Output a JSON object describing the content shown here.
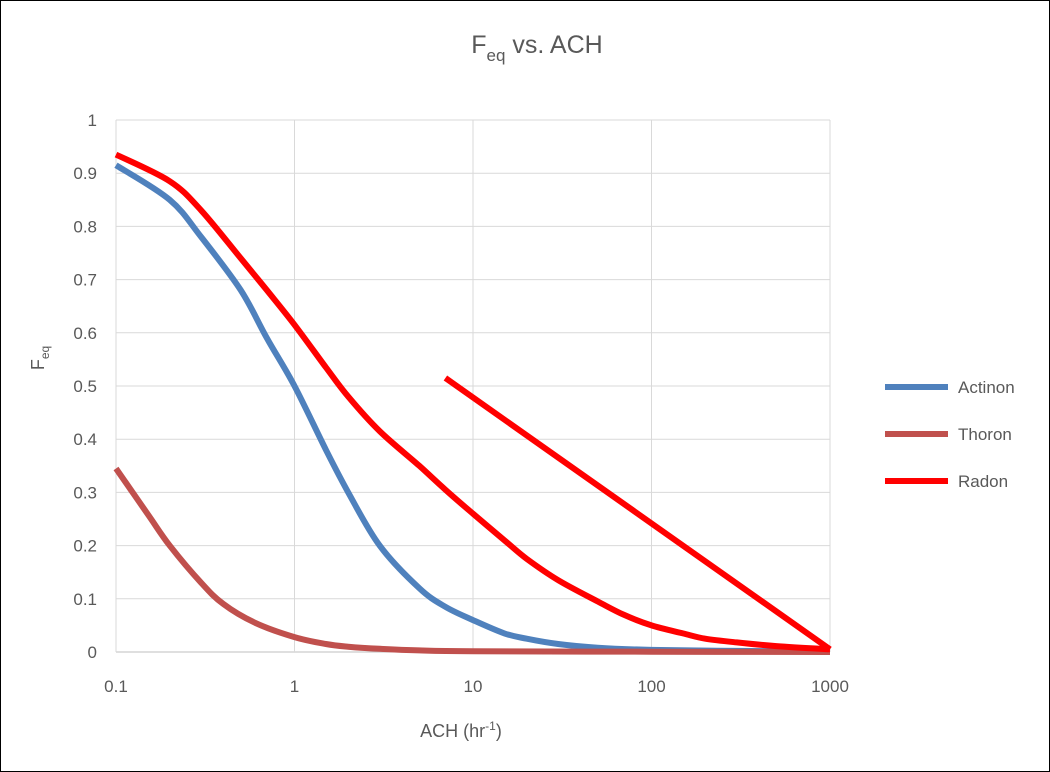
{
  "chart_data": {
    "type": "line",
    "title": {
      "main": "F",
      "sub": "eq",
      "rest": " vs. ACH"
    },
    "xlabel": {
      "main": "ACH (hr",
      "sup": "-1",
      "end": ")"
    },
    "ylabel": {
      "main": "F",
      "sub": "eq"
    },
    "x_scale": "log",
    "xlim": [
      0.1,
      1000
    ],
    "ylim": [
      0,
      1
    ],
    "x_ticks": [
      "0.1",
      "1",
      "10",
      "100",
      "1000"
    ],
    "y_ticks": [
      "0",
      "0.1",
      "0.2",
      "0.3",
      "0.4",
      "0.5",
      "0.6",
      "0.7",
      "0.8",
      "0.9",
      "1"
    ],
    "grid": true,
    "legend_position": "right",
    "series": [
      {
        "name": "Actinon",
        "color": "#4f81bd",
        "points": [
          [
            0.1,
            0.915
          ],
          [
            0.2,
            0.85
          ],
          [
            0.3,
            0.78
          ],
          [
            0.5,
            0.68
          ],
          [
            0.7,
            0.59
          ],
          [
            1,
            0.5
          ],
          [
            1.5,
            0.38
          ],
          [
            2,
            0.3
          ],
          [
            3,
            0.2
          ],
          [
            5,
            0.12
          ],
          [
            7,
            0.085
          ],
          [
            10,
            0.06
          ],
          [
            15,
            0.035
          ],
          [
            20,
            0.025
          ],
          [
            30,
            0.015
          ],
          [
            50,
            0.008
          ],
          [
            100,
            0.004
          ],
          [
            300,
            0.002
          ],
          [
            1000,
            0.001
          ]
        ]
      },
      {
        "name": "Thoron",
        "color": "#c0504d",
        "points": [
          [
            0.1,
            0.345
          ],
          [
            0.15,
            0.26
          ],
          [
            0.2,
            0.2
          ],
          [
            0.3,
            0.13
          ],
          [
            0.4,
            0.09
          ],
          [
            0.6,
            0.055
          ],
          [
            1,
            0.028
          ],
          [
            1.5,
            0.015
          ],
          [
            2,
            0.01
          ],
          [
            3,
            0.006
          ],
          [
            5,
            0.003
          ],
          [
            10,
            0.0015
          ],
          [
            100,
            0.0005
          ],
          [
            1000,
            0.0
          ]
        ]
      },
      {
        "name": "Radon",
        "color": "#ff0000",
        "points": [
          [
            0.1,
            0.935
          ],
          [
            0.2,
            0.885
          ],
          [
            0.3,
            0.83
          ],
          [
            0.5,
            0.74
          ],
          [
            0.7,
            0.68
          ],
          [
            1,
            0.615
          ],
          [
            1.5,
            0.535
          ],
          [
            2,
            0.48
          ],
          [
            3,
            0.415
          ],
          [
            5,
            0.35
          ],
          [
            7,
            0.305
          ],
          [
            10,
            0.26
          ],
          [
            15,
            0.21
          ],
          [
            20,
            0.175
          ],
          [
            30,
            0.135
          ],
          [
            50,
            0.095
          ],
          [
            70,
            0.07
          ],
          [
            100,
            0.05
          ],
          [
            150,
            0.035
          ],
          [
            200,
            0.025
          ],
          [
            300,
            0.018
          ],
          [
            500,
            0.011
          ],
          [
            1000,
            0.005
          ]
        ]
      },
      {
        "name": "",
        "color": "#ff0000",
        "points": [
          [
            7,
            0.515
          ],
          [
            1000,
            0.005
          ]
        ]
      }
    ]
  }
}
